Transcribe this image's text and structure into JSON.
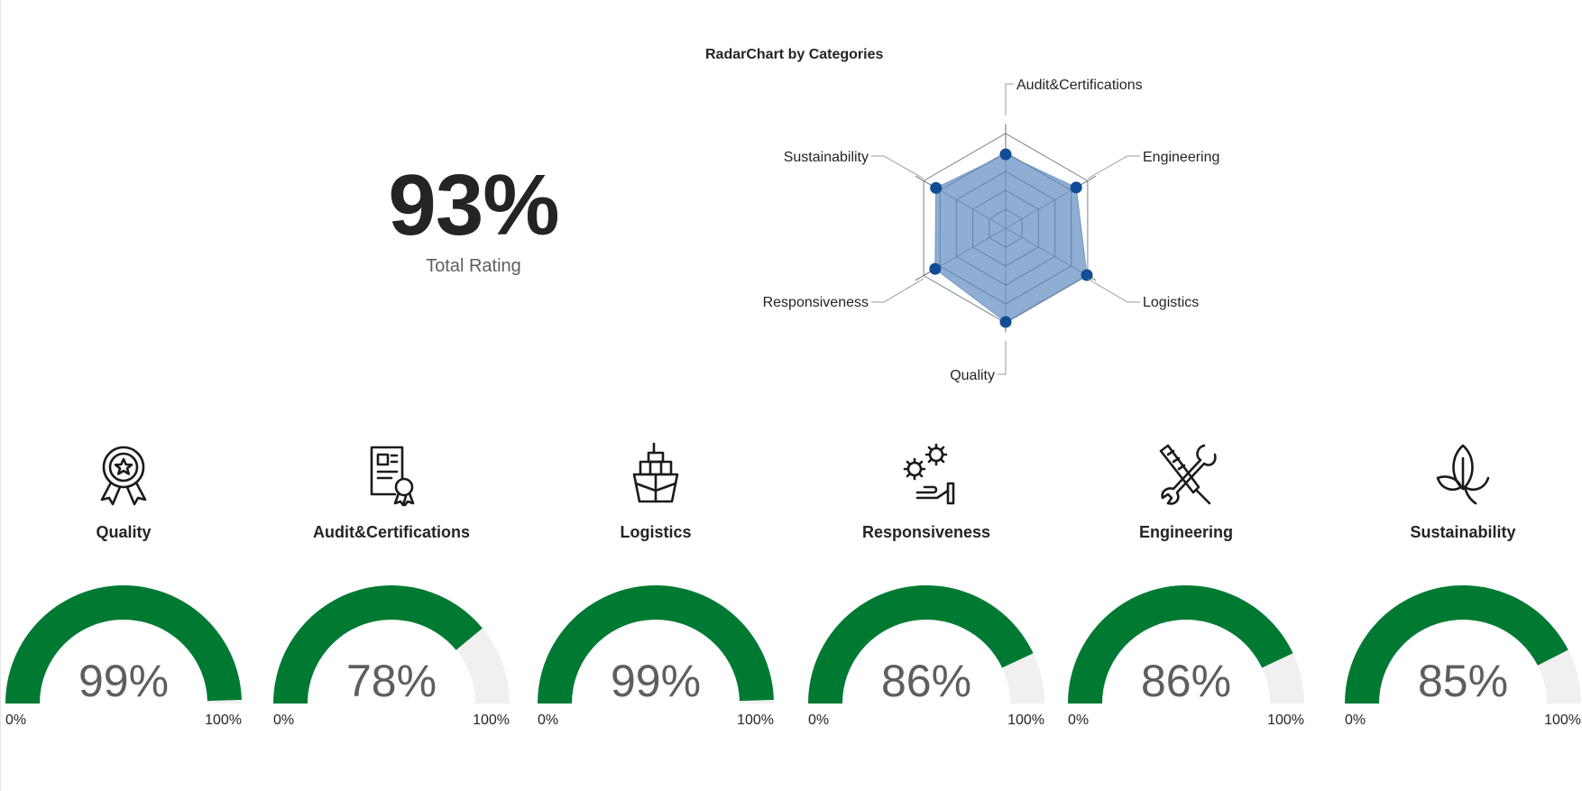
{
  "kpi": {
    "value": "93%",
    "label": "Total Rating"
  },
  "colors": {
    "gauge_fill": "#007a33",
    "gauge_track": "#f0f0f0",
    "radar_fill": "#6f97c8",
    "radar_point": "#114c94",
    "grid": "#9a9a9a"
  },
  "chart_data": [
    {
      "type": "radar",
      "title": "RadarChart by Categories",
      "categories": [
        "Audit&Certifications",
        "Engineering",
        "Logistics",
        "Quality",
        "Responsiveness",
        "Sustainability"
      ],
      "values": [
        78,
        86,
        99,
        99,
        86,
        85
      ],
      "range": [
        0,
        100
      ],
      "grid": true
    },
    {
      "type": "gauge",
      "title": "Quality",
      "value": 99,
      "value_label": "99%",
      "min_label": "0%",
      "max_label": "100%",
      "range": [
        0,
        100
      ],
      "icon": "award-ribbon-icon"
    },
    {
      "type": "gauge",
      "title": "Audit&Certifications",
      "value": 78,
      "value_label": "78%",
      "min_label": "0%",
      "max_label": "100%",
      "range": [
        0,
        100
      ],
      "icon": "certificate-icon"
    },
    {
      "type": "gauge",
      "title": "Logistics",
      "value": 99,
      "value_label": "99%",
      "min_label": "0%",
      "max_label": "100%",
      "range": [
        0,
        100
      ],
      "icon": "cargo-ship-icon"
    },
    {
      "type": "gauge",
      "title": "Responsiveness",
      "value": 86,
      "value_label": "86%",
      "min_label": "0%",
      "max_label": "100%",
      "range": [
        0,
        100
      ],
      "icon": "gears-hand-icon"
    },
    {
      "type": "gauge",
      "title": "Engineering",
      "value": 86,
      "value_label": "86%",
      "min_label": "0%",
      "max_label": "100%",
      "range": [
        0,
        100
      ],
      "icon": "tools-icon"
    },
    {
      "type": "gauge",
      "title": "Sustainability",
      "value": 85,
      "value_label": "85%",
      "min_label": "0%",
      "max_label": "100%",
      "range": [
        0,
        100
      ],
      "icon": "leaf-icon"
    }
  ]
}
